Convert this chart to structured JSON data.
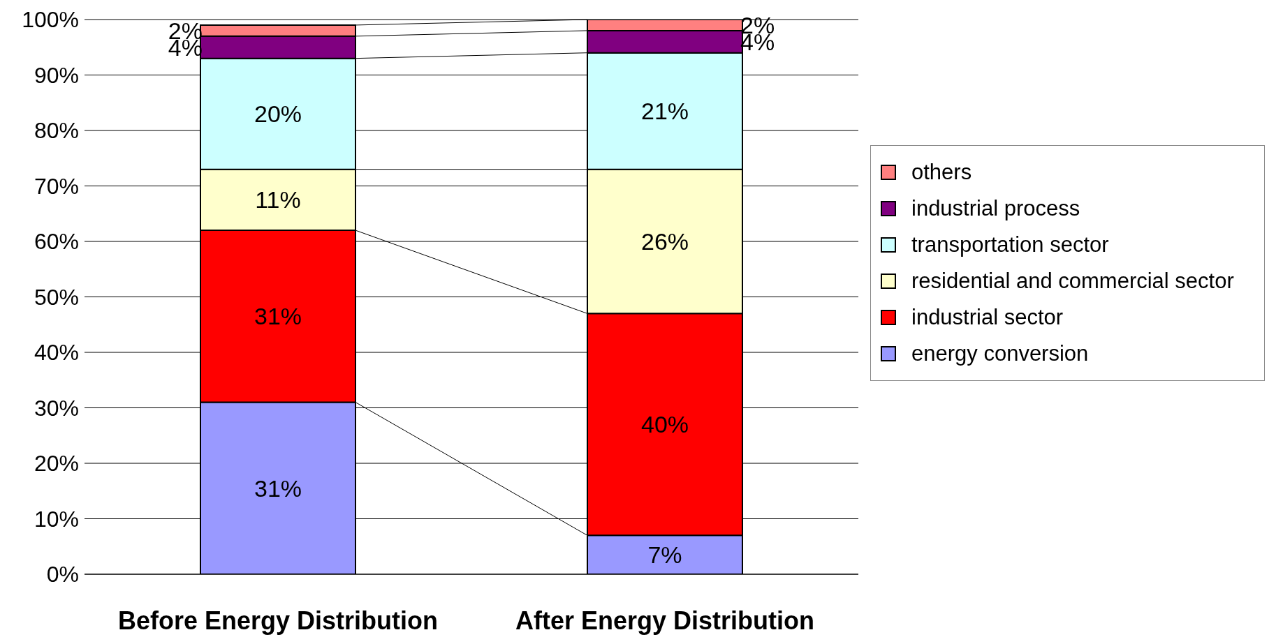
{
  "chart_data": {
    "type": "bar",
    "stacked": true,
    "categories": [
      "Before Energy Distribution",
      "After Energy Distribution"
    ],
    "series": [
      {
        "name": "energy conversion",
        "color": "#9999ff",
        "values": [
          31,
          7
        ],
        "value_labels": [
          "31%",
          "7%"
        ]
      },
      {
        "name": "industrial sector",
        "color": "#ff0000",
        "values": [
          31,
          40
        ],
        "value_labels": [
          "31%",
          "40%"
        ]
      },
      {
        "name": "residential and commercial sector",
        "color": "#ffffcc",
        "values": [
          11,
          26
        ],
        "value_labels": [
          "11%",
          "26%"
        ]
      },
      {
        "name": "transportation sector",
        "color": "#ccffff",
        "values": [
          20,
          21
        ],
        "value_labels": [
          "20%",
          "21%"
        ]
      },
      {
        "name": "industrial process",
        "color": "#800080",
        "values": [
          4,
          4
        ],
        "value_labels": [
          "4%",
          "4%"
        ]
      },
      {
        "name": "others",
        "color": "#ff8080",
        "values": [
          2,
          2
        ],
        "value_labels": [
          "2%",
          "2%"
        ]
      }
    ],
    "ylim": [
      0,
      100
    ],
    "yticks": [
      {
        "value": 0,
        "label": "0%"
      },
      {
        "value": 10,
        "label": "10%"
      },
      {
        "value": 20,
        "label": "20%"
      },
      {
        "value": 30,
        "label": "30%"
      },
      {
        "value": 40,
        "label": "40%"
      },
      {
        "value": 50,
        "label": "50%"
      },
      {
        "value": 60,
        "label": "60%"
      },
      {
        "value": 70,
        "label": "70%"
      },
      {
        "value": 80,
        "label": "80%"
      },
      {
        "value": 90,
        "label": "90%"
      },
      {
        "value": 100,
        "label": "100%"
      }
    ],
    "grid": "y",
    "legend": "right"
  }
}
